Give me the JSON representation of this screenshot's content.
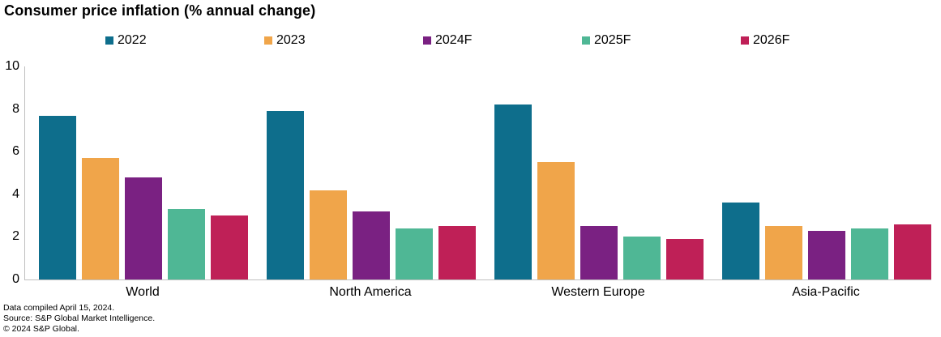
{
  "title": "Consumer price inflation (% annual change)",
  "chart_data": {
    "type": "bar",
    "title": "Consumer price inflation (% annual change)",
    "categories": [
      "World",
      "North America",
      "Western Europe",
      "Asia-Pacific"
    ],
    "series": [
      {
        "name": "2022",
        "color": "#0e6e8c",
        "values": [
          7.7,
          7.9,
          8.2,
          3.6
        ]
      },
      {
        "name": "2023",
        "color": "#f0a54a",
        "values": [
          5.7,
          4.2,
          5.5,
          2.5
        ]
      },
      {
        "name": "2024F",
        "color": "#7a2182",
        "values": [
          4.8,
          3.2,
          2.5,
          2.3
        ]
      },
      {
        "name": "2025F",
        "color": "#4fb795",
        "values": [
          3.3,
          2.4,
          2.0,
          2.4
        ]
      },
      {
        "name": "2026F",
        "color": "#bf2057",
        "values": [
          3.0,
          2.5,
          1.9,
          2.6
        ]
      }
    ],
    "xlabel": "",
    "ylabel": "",
    "ylim": [
      0,
      10
    ],
    "yticks": [
      0,
      2,
      4,
      6,
      8,
      10
    ],
    "legend_position": "top",
    "grid": false,
    "axis_color": "#bfbfbf"
  },
  "footer": {
    "line1": "Data compiled April 15, 2024.",
    "line2": "Source: S&P Global Market Intelligence.",
    "line3": "© 2024 S&P Global."
  }
}
